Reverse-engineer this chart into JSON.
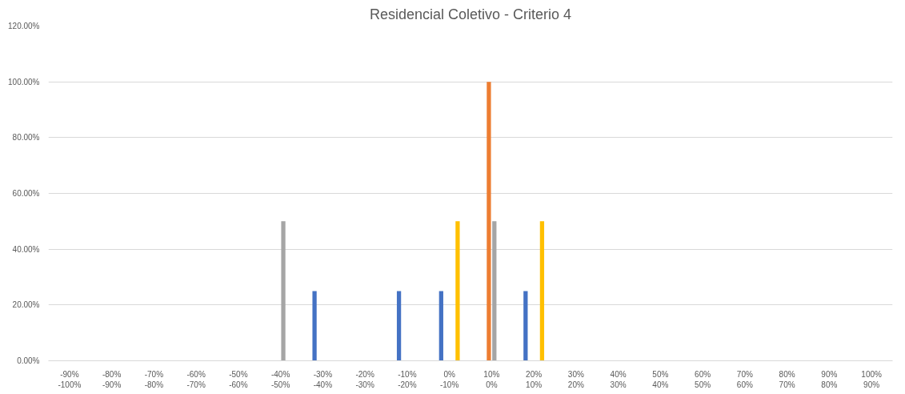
{
  "chart_data": {
    "type": "bar",
    "title": "Residencial Coletivo - Criterio 4",
    "categories": [
      "-90%\n-100%",
      "-80%\n-90%",
      "-70%\n-80%",
      "-60%\n-70%",
      "-50%\n-60%",
      "-40%\n-50%",
      "-30%\n-40%",
      "-20%\n-30%",
      "-10%\n-20%",
      "0%\n-10%",
      "10%\n0%",
      "20%\n10%",
      "30%\n20%",
      "40%\n30%",
      "50%\n40%",
      "60%\n50%",
      "70%\n60%",
      "80%\n70%",
      "90%\n80%",
      "100%\n90%"
    ],
    "series": [
      {
        "color": "#4472c4",
        "values": [
          0,
          0,
          0,
          0,
          0,
          0,
          25,
          0,
          25,
          25,
          0,
          25,
          0,
          0,
          0,
          0,
          0,
          0,
          0,
          0
        ]
      },
      {
        "color": "#ed7d31",
        "values": [
          0,
          0,
          0,
          0,
          0,
          0,
          0,
          0,
          0,
          0,
          100,
          0,
          0,
          0,
          0,
          0,
          0,
          0,
          0,
          0
        ]
      },
      {
        "color": "#a5a5a5",
        "values": [
          0,
          0,
          0,
          0,
          0,
          50,
          0,
          0,
          0,
          0,
          50,
          0,
          0,
          0,
          0,
          0,
          0,
          0,
          0,
          0
        ]
      },
      {
        "color": "#ffc000",
        "values": [
          0,
          0,
          0,
          0,
          0,
          0,
          0,
          0,
          0,
          50,
          0,
          50,
          0,
          0,
          0,
          0,
          0,
          0,
          0,
          0
        ]
      }
    ],
    "ylim": [
      0,
      120
    ],
    "yticks": [
      {
        "value": 0,
        "label": "0.00%"
      },
      {
        "value": 20,
        "label": "20.00%"
      },
      {
        "value": 40,
        "label": "40.00%"
      },
      {
        "value": 60,
        "label": "60.00%"
      },
      {
        "value": 80,
        "label": "80.00%"
      },
      {
        "value": 100,
        "label": "100.00%"
      },
      {
        "value": 120,
        "label": "120.00%"
      }
    ],
    "grid": "y"
  }
}
